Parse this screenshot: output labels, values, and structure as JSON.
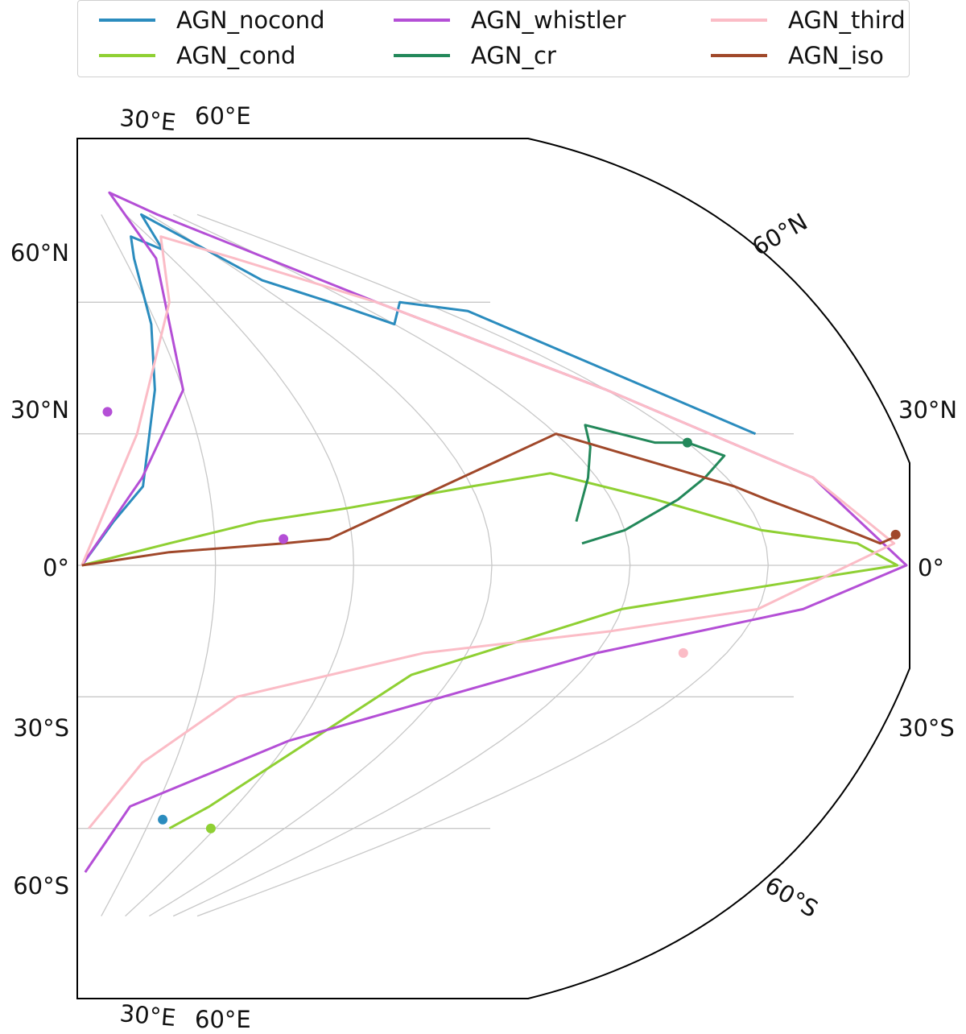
{
  "chart_data": {
    "type": "line",
    "projection": "Mollweide-like map (partial)",
    "grid": true,
    "legend_placement": "top",
    "series": [
      {
        "name": "AGN_nocond",
        "color": "#2b8cbe",
        "x": [
          1,
          8,
          15,
          22,
          28,
          36,
          45,
          60,
          80,
          95,
          110,
          120,
          140,
          160,
          170
        ],
        "y": [
          0,
          10,
          18,
          40,
          55,
          70,
          75,
          72,
          80,
          65,
          60,
          55,
          60,
          58,
          30
        ]
      },
      {
        "name": "AGN_cond",
        "color": "#8fd033",
        "x": [
          1,
          20,
          40,
          60,
          90,
          110,
          130,
          150,
          170,
          178,
          160,
          120,
          80,
          50,
          40
        ],
        "y": [
          0,
          5,
          10,
          13,
          18,
          21,
          15,
          8,
          5,
          0,
          -3,
          -10,
          -25,
          -55,
          -60
        ]
      },
      {
        "name": "AGN_whistler",
        "color": "#b44fd6",
        "x": [
          1,
          15,
          30,
          50,
          80,
          100,
          130,
          150,
          170,
          180,
          160,
          120,
          60,
          20,
          5
        ],
        "y": [
          0,
          20,
          40,
          70,
          85,
          80,
          60,
          40,
          20,
          0,
          -10,
          -20,
          -40,
          -55,
          -70
        ]
      },
      {
        "name": "AGN_cr",
        "color": "#23885a",
        "x": [
          110,
          118,
          125,
          130,
          136,
          142,
          150,
          155,
          145,
          135,
          120,
          110
        ],
        "y": [
          10,
          20,
          27,
          32,
          30,
          28,
          28,
          25,
          20,
          15,
          8,
          5
        ]
      },
      {
        "name": "AGN_third",
        "color": "#fbbcc6",
        "x": [
          1,
          15,
          40,
          70,
          100,
          130,
          150,
          170,
          178,
          150,
          120,
          80,
          40,
          20,
          5
        ],
        "y": [
          0,
          30,
          60,
          75,
          70,
          60,
          40,
          20,
          5,
          -10,
          -15,
          -20,
          -30,
          -45,
          -60
        ]
      },
      {
        "name": "AGN_iso",
        "color": "#a0482a",
        "x": [
          1,
          20,
          45,
          55,
          120,
          130,
          140,
          150,
          155,
          165,
          175,
          180
        ],
        "y": [
          0,
          3,
          5,
          6,
          30,
          26,
          22,
          18,
          15,
          10,
          5,
          7
        ]
      }
    ],
    "end_markers": [
      {
        "series": "AGN_nocond",
        "x": 35,
        "y": -58
      },
      {
        "series": "AGN_cond",
        "x": 58,
        "y": -60
      },
      {
        "series": "AGN_whistler",
        "x": 8,
        "y": 35
      },
      {
        "series": "AGN_whistler",
        "x": 45,
        "y": 6
      },
      {
        "series": "AGN_cr",
        "x": 150,
        "y": 28
      },
      {
        "series": "AGN_third",
        "x": 140,
        "y": -20
      },
      {
        "series": "AGN_iso",
        "x": 179,
        "y": 7
      }
    ],
    "ticks": {
      "left_lat": [
        "60°N",
        "30°N",
        "0°",
        "30°S",
        "60°S"
      ],
      "right_lat": [
        "30°N",
        "0°",
        "30°S"
      ],
      "edge_lat": [
        "60°N",
        "60°S"
      ],
      "lon_top": [
        "30°E",
        "60°E"
      ],
      "lon_bottom": [
        "30°E",
        "60°E"
      ]
    }
  }
}
